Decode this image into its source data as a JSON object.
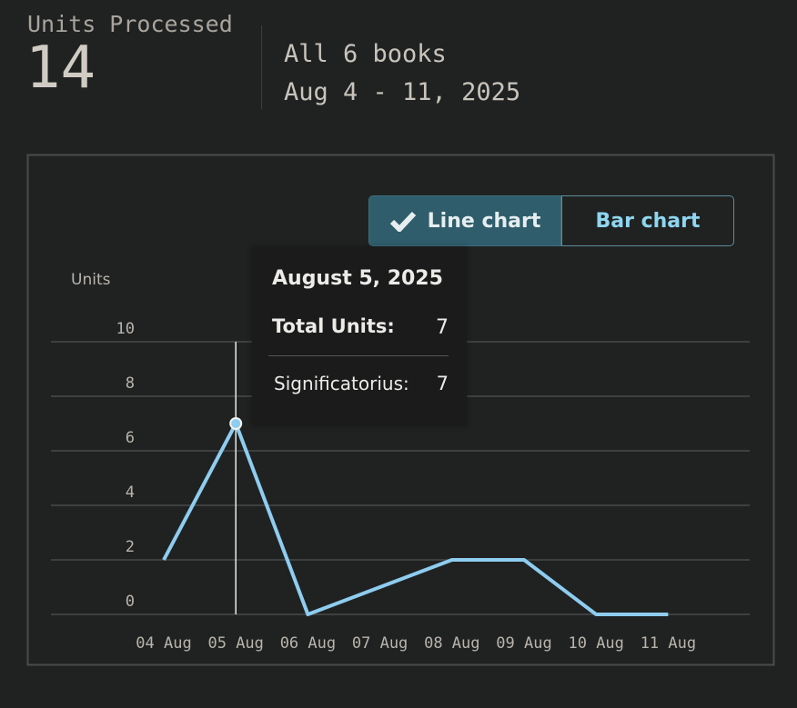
{
  "header": {
    "metric_label": "Units Processed",
    "metric_value": 14,
    "scope": "All 6 books",
    "date_range": "Aug 4 - 11, 2025"
  },
  "toggle": {
    "options": [
      "Line chart",
      "Bar chart"
    ]
  },
  "chart_data": {
    "type": "line",
    "y_label": "Units",
    "categories": [
      "04 Aug",
      "05 Aug",
      "06 Aug",
      "07 Aug",
      "08 Aug",
      "09 Aug",
      "10 Aug",
      "11 Aug"
    ],
    "values": [
      2,
      7,
      0,
      1,
      2,
      2,
      0,
      0
    ],
    "color": "#8ecdf0",
    "ylim": [
      0,
      10
    ],
    "yticks": [
      0,
      2,
      4,
      6,
      8,
      10
    ],
    "grid": true
  },
  "tooltip": {
    "title": "August 5, 2025",
    "total_label": "Total Units:",
    "total_value": 7,
    "rows": [
      {
        "label": "Significatorius:",
        "value": 7
      }
    ]
  }
}
